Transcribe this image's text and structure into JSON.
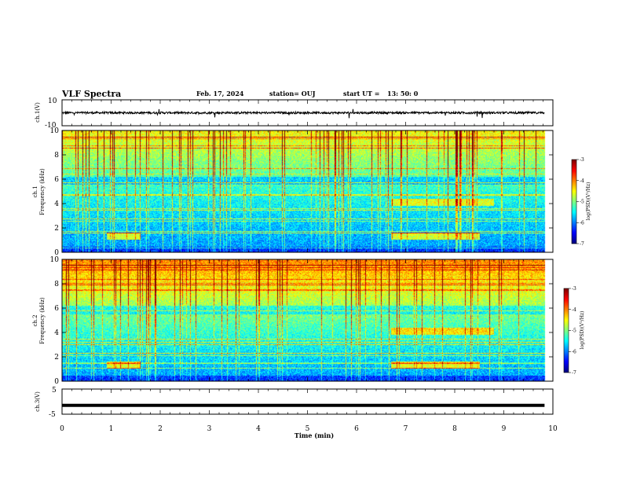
{
  "header": {
    "title": "VLF Spectra",
    "date": "Feb. 17, 2024",
    "station": "station= OUJ",
    "start_label": "start  UT  =",
    "start_time": "13: 50: 0"
  },
  "chart_data": [
    {
      "type": "line",
      "panel": "ch1-waveform",
      "ylabel": "ch.1(V)",
      "ylim": [
        -10,
        10
      ],
      "y_tick_labels": [
        "10",
        "-10"
      ],
      "baseline_level": 0,
      "color": "#000000"
    },
    {
      "type": "heatmap",
      "panel": "ch1-spectrogram",
      "ylabel": "ch.1\nFrequency  (kHz)",
      "ylabel_line1": "ch.1",
      "ylabel_line2": "Frequency  (kHz)",
      "ylim": [
        0,
        10
      ],
      "y_ticks": [
        "0",
        "2",
        "4",
        "6",
        "8",
        "10"
      ],
      "colorbar": {
        "label": "log(PSD)(V²/Hz)",
        "range": [
          -7,
          -3
        ],
        "ticks": [
          "-3",
          "-4",
          "-5",
          "-6",
          "-7"
        ]
      }
    },
    {
      "type": "heatmap",
      "panel": "ch2-spectrogram",
      "ylabel": "ch.2\nFrequency  (kHz)",
      "ylabel_line1": "ch.2",
      "ylabel_line2": "Frequency  (kHz)",
      "ylim": [
        0,
        10
      ],
      "y_ticks": [
        "0",
        "2",
        "4",
        "6",
        "8",
        "10"
      ],
      "colorbar": {
        "label": "log(PSD)(V²/Hz)",
        "range": [
          -7,
          -3
        ],
        "ticks": [
          "-3",
          "-4",
          "-5",
          "-6",
          "-7"
        ]
      }
    },
    {
      "type": "line",
      "panel": "ch3-waveform",
      "ylabel": "ch.3(V)",
      "ylim": [
        -5,
        5
      ],
      "y_tick_labels": [
        "5",
        "-5"
      ],
      "value": -1.5,
      "color": "#000000"
    }
  ],
  "x_axis": {
    "label": "Time  (min)",
    "range": [
      0,
      10
    ],
    "ticks": [
      "0",
      "1",
      "2",
      "3",
      "4",
      "5",
      "6",
      "7",
      "8",
      "9",
      "10"
    ],
    "data_end": 9.83
  },
  "colors": {
    "colormap": [
      "#000080",
      "#0000ff",
      "#0080ff",
      "#00ffff",
      "#80ff80",
      "#ffff00",
      "#ff8000",
      "#ff0000",
      "#800000"
    ]
  }
}
